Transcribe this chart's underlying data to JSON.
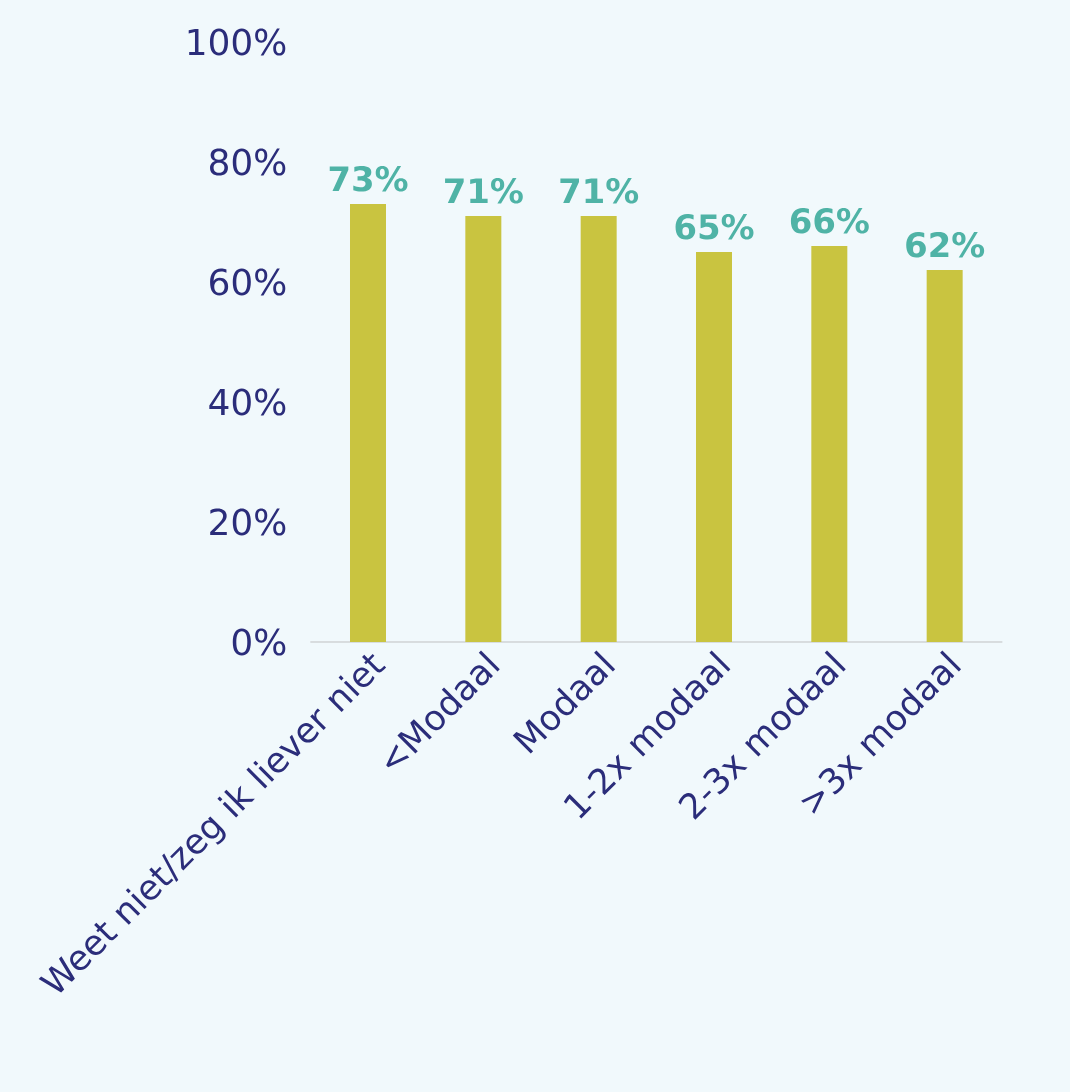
{
  "chart_data": {
    "type": "bar",
    "categories": [
      "Weet niet/zeg ik liever niet",
      "<Modaal",
      "Modaal",
      "1-2x modaal",
      "2-3x modaal",
      ">3x modaal"
    ],
    "values": [
      73,
      71,
      71,
      65,
      66,
      62
    ],
    "value_labels": [
      "73%",
      "71%",
      "71%",
      "65%",
      "66%",
      "62%"
    ],
    "color": "#c9c440",
    "ylim": [
      0,
      100
    ],
    "yticks": [
      {
        "value": 0,
        "label": "0%"
      },
      {
        "value": 20,
        "label": "20%"
      },
      {
        "value": 40,
        "label": "40%"
      },
      {
        "value": 60,
        "label": "60%"
      },
      {
        "value": 80,
        "label": "80%"
      },
      {
        "value": 100,
        "label": "100%"
      }
    ]
  }
}
